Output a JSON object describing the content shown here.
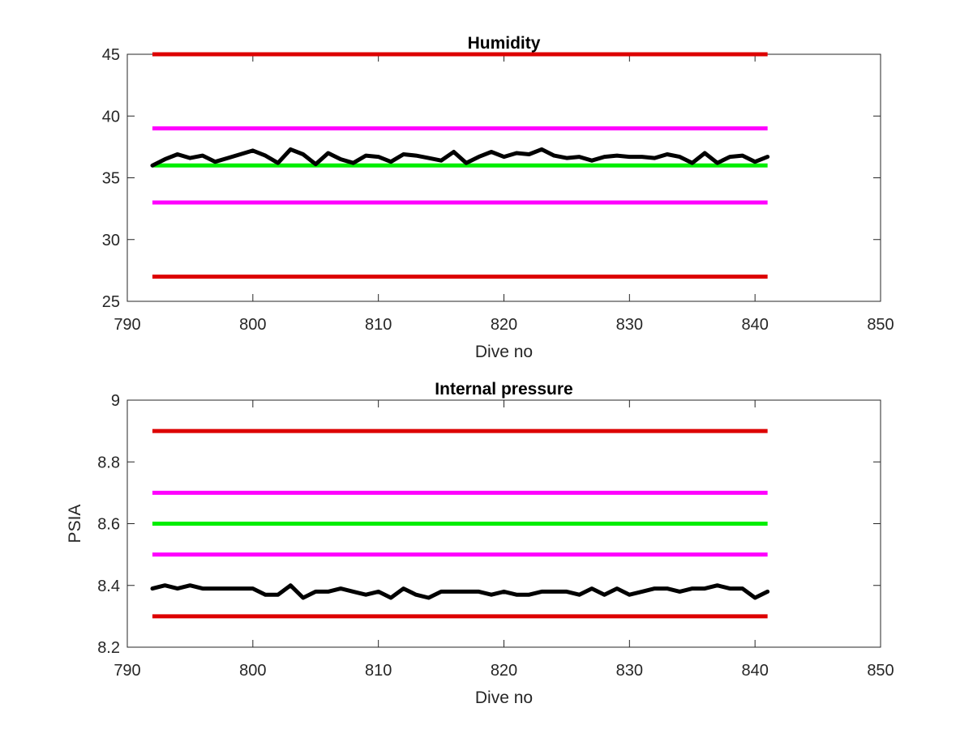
{
  "chart_data": [
    {
      "type": "line",
      "title": "Humidity",
      "xlabel": "Dive no",
      "ylabel": "",
      "xlim": [
        790,
        850
      ],
      "ylim": [
        25,
        45
      ],
      "xticks": [
        790,
        800,
        810,
        820,
        830,
        840,
        850
      ],
      "yticks": [
        25,
        30,
        35,
        40,
        45
      ],
      "grid": false,
      "thresholds": [
        {
          "value": 45,
          "color": "#dd0000",
          "x_range": [
            792,
            841
          ]
        },
        {
          "value": 39,
          "color": "#ff00ff",
          "x_range": [
            792,
            841
          ]
        },
        {
          "value": 36,
          "color": "#00ee00",
          "x_range": [
            792,
            841
          ]
        },
        {
          "value": 33,
          "color": "#ff00ff",
          "x_range": [
            792,
            841
          ]
        },
        {
          "value": 27,
          "color": "#dd0000",
          "x_range": [
            792,
            841
          ]
        }
      ],
      "series": [
        {
          "color": "#000000",
          "x": [
            792,
            793,
            794,
            795,
            796,
            797,
            798,
            799,
            800,
            801,
            802,
            803,
            804,
            805,
            806,
            807,
            808,
            809,
            810,
            811,
            812,
            813,
            814,
            815,
            816,
            817,
            818,
            819,
            820,
            821,
            822,
            823,
            824,
            825,
            826,
            827,
            828,
            829,
            830,
            831,
            832,
            833,
            834,
            835,
            836,
            837,
            838,
            839,
            840,
            841
          ],
          "values": [
            36.0,
            36.5,
            36.9,
            36.6,
            36.8,
            36.3,
            36.6,
            36.9,
            37.2,
            36.8,
            36.2,
            37.3,
            36.9,
            36.1,
            37.0,
            36.5,
            36.2,
            36.8,
            36.7,
            36.3,
            36.9,
            36.8,
            36.6,
            36.4,
            37.1,
            36.2,
            36.7,
            37.1,
            36.7,
            37.0,
            36.9,
            37.3,
            36.8,
            36.6,
            36.7,
            36.4,
            36.7,
            36.8,
            36.7,
            36.7,
            36.6,
            36.9,
            36.7,
            36.2,
            37.0,
            36.2,
            36.7,
            36.8,
            36.3,
            36.7
          ]
        }
      ]
    },
    {
      "type": "line",
      "title": "Internal pressure",
      "xlabel": "Dive no",
      "ylabel": "PSIA",
      "xlim": [
        790,
        850
      ],
      "ylim": [
        8.2,
        9
      ],
      "xticks": [
        790,
        800,
        810,
        820,
        830,
        840,
        850
      ],
      "yticks": [
        8.2,
        8.4,
        8.6,
        8.8,
        9
      ],
      "grid": false,
      "thresholds": [
        {
          "value": 8.9,
          "color": "#dd0000",
          "x_range": [
            792,
            841
          ]
        },
        {
          "value": 8.7,
          "color": "#ff00ff",
          "x_range": [
            792,
            841
          ]
        },
        {
          "value": 8.6,
          "color": "#00ee00",
          "x_range": [
            792,
            841
          ]
        },
        {
          "value": 8.5,
          "color": "#ff00ff",
          "x_range": [
            792,
            841
          ]
        },
        {
          "value": 8.3,
          "color": "#dd0000",
          "x_range": [
            792,
            841
          ]
        }
      ],
      "series": [
        {
          "color": "#000000",
          "x": [
            792,
            793,
            794,
            795,
            796,
            797,
            798,
            799,
            800,
            801,
            802,
            803,
            804,
            805,
            806,
            807,
            808,
            809,
            810,
            811,
            812,
            813,
            814,
            815,
            816,
            817,
            818,
            819,
            820,
            821,
            822,
            823,
            824,
            825,
            826,
            827,
            828,
            829,
            830,
            831,
            832,
            833,
            834,
            835,
            836,
            837,
            838,
            839,
            840,
            841
          ],
          "values": [
            8.39,
            8.4,
            8.39,
            8.4,
            8.39,
            8.39,
            8.39,
            8.39,
            8.39,
            8.37,
            8.37,
            8.4,
            8.36,
            8.38,
            8.38,
            8.39,
            8.38,
            8.37,
            8.38,
            8.36,
            8.39,
            8.37,
            8.36,
            8.38,
            8.38,
            8.38,
            8.38,
            8.37,
            8.38,
            8.37,
            8.37,
            8.38,
            8.38,
            8.38,
            8.37,
            8.39,
            8.37,
            8.39,
            8.37,
            8.38,
            8.39,
            8.39,
            8.38,
            8.39,
            8.39,
            8.4,
            8.39,
            8.39,
            8.36,
            8.38
          ]
        }
      ]
    }
  ]
}
